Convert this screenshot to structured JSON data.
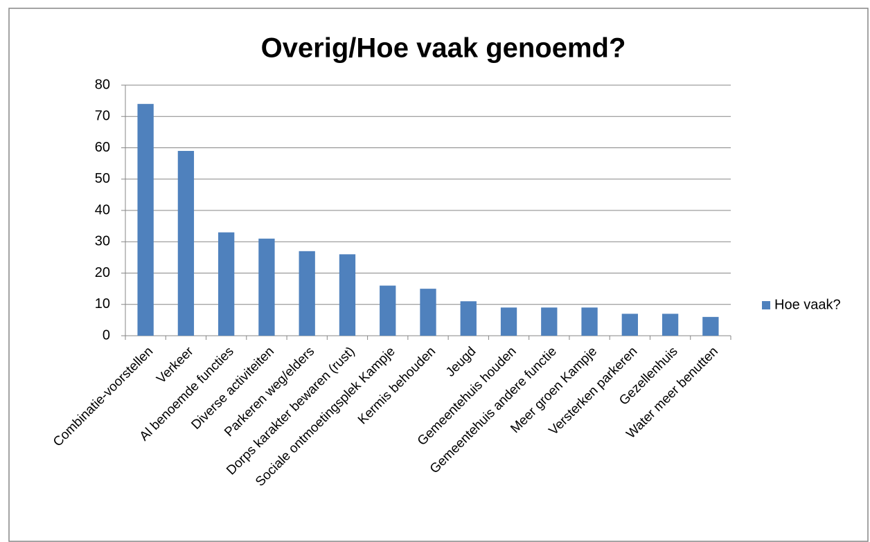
{
  "chart_data": {
    "type": "bar",
    "title": "Overig/Hoe vaak genoemd?",
    "categories": [
      "Combinatie-voorstellen",
      "Verkeer",
      "Al benoemde functies",
      "Diverse activiteiten",
      "Parkeren weg/elders",
      "Dorps karakter bewaren (rust)",
      "Sociale ontmoetingsplek Kampje",
      "Kermis behouden",
      "Jeugd",
      "Gemeentehuis houden",
      "Gemeentehuis andere functie",
      "Meer groen Kampje",
      "Versterken parkeren",
      "Gezellenhuis",
      "Water meer benutten"
    ],
    "series": [
      {
        "name": "Hoe vaak?",
        "color": "#4f81bd",
        "values": [
          74,
          59,
          33,
          31,
          27,
          26,
          16,
          15,
          11,
          9,
          9,
          9,
          7,
          7,
          6
        ]
      }
    ],
    "ylim": [
      0,
      80
    ],
    "yticks": [
      0,
      10,
      20,
      30,
      40,
      50,
      60,
      70,
      80
    ],
    "grid": true,
    "legend": "right"
  }
}
